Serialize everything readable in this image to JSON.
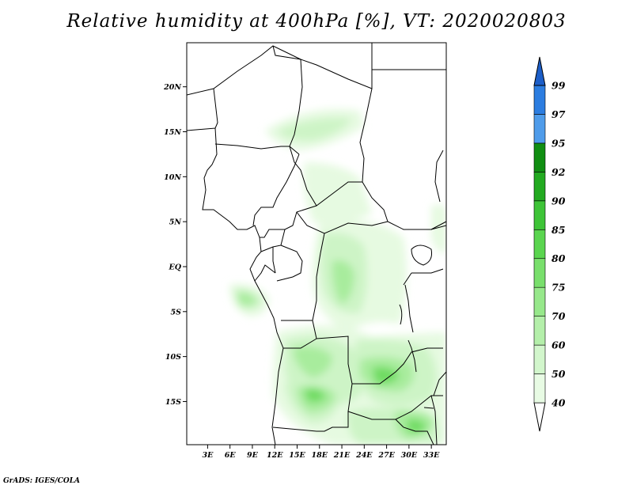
{
  "title": "Relative humidity at 400hPa [%], VT: 2020020803",
  "credit": "GrADS: IGES/COLA",
  "map": {
    "lat_labels": [
      {
        "lat": 20,
        "label": "20N"
      },
      {
        "lat": 15,
        "label": "15N"
      },
      {
        "lat": 10,
        "label": "10N"
      },
      {
        "lat": 5,
        "label": "5N"
      },
      {
        "lat": 0,
        "label": "EQ"
      },
      {
        "lat": -5,
        "label": "5S"
      },
      {
        "lat": -10,
        "label": "10S"
      },
      {
        "lat": -15,
        "label": "15S"
      }
    ],
    "lon_labels": [
      {
        "lon": 3,
        "label": "3E"
      },
      {
        "lon": 6,
        "label": "6E"
      },
      {
        "lon": 9,
        "label": "9E"
      },
      {
        "lon": 12,
        "label": "12E"
      },
      {
        "lon": 15,
        "label": "15E"
      },
      {
        "lon": 18,
        "label": "18E"
      },
      {
        "lon": 21,
        "label": "21E"
      },
      {
        "lon": 24,
        "label": "24E"
      },
      {
        "lon": 27,
        "label": "27E"
      },
      {
        "lon": 30,
        "label": "30E"
      },
      {
        "lon": 33,
        "label": "33E"
      }
    ],
    "lon_range": [
      0.2,
      35
    ],
    "lat_range": [
      -19.8,
      24.9
    ]
  },
  "colorbar": {
    "labels": [
      "40",
      "50",
      "60",
      "70",
      "75",
      "80",
      "85",
      "90",
      "92",
      "95",
      "97",
      "99"
    ],
    "colors": [
      "#ffffff",
      "#e8fbe4",
      "#d2f6cc",
      "#b4efaa",
      "#97e88b",
      "#79df6c",
      "#5ad54f",
      "#3ec437",
      "#22aa20",
      "#108e12",
      "#4f9cea",
      "#2c7de0",
      "#1c5ec8"
    ]
  }
}
